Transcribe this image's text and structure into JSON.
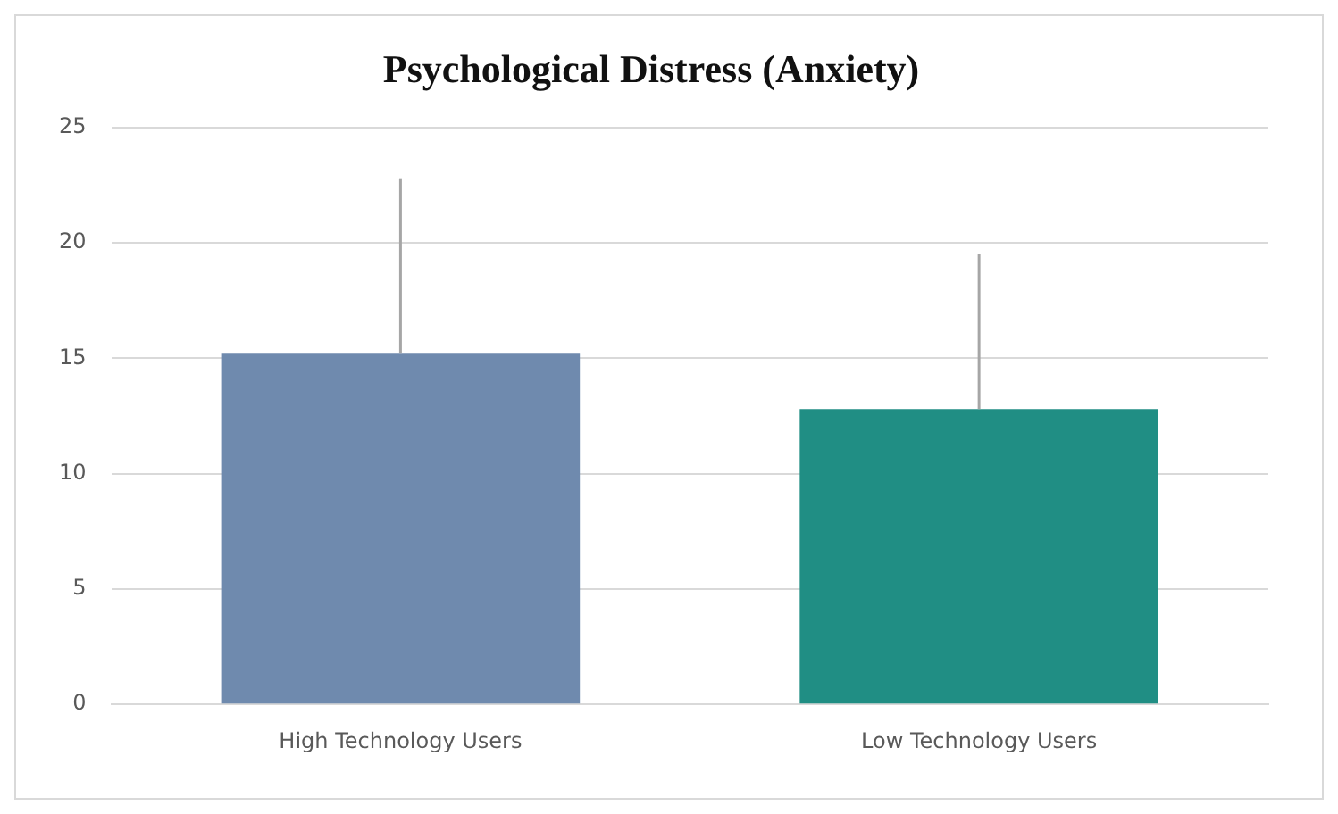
{
  "chart_data": {
    "type": "bar",
    "title": "Psychological Distress (Anxiety)",
    "categories": [
      "High Technology Users",
      "Low Technology Users"
    ],
    "values": [
      15.2,
      12.8
    ],
    "colors": [
      "#6f8aae",
      "#208e84"
    ],
    "errors": [
      [
        15.2,
        22.8
      ],
      [
        12.8,
        19.5
      ]
    ],
    "ylim": [
      0,
      25
    ],
    "yticks": [
      0,
      5,
      10,
      15,
      20,
      25
    ],
    "grid": "y",
    "legend": false
  }
}
